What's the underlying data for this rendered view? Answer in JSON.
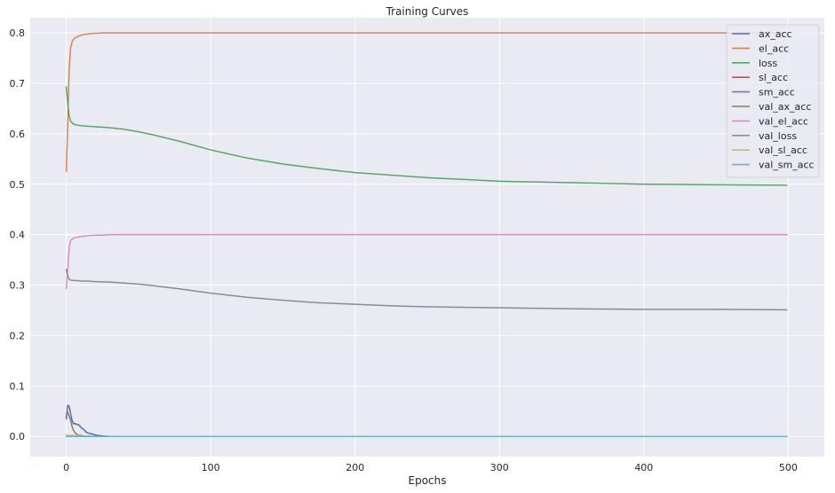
{
  "chart_data": {
    "type": "line",
    "title": "Training Curves",
    "xlabel": "Epochs",
    "ylabel": "",
    "xlim": [
      -25,
      525
    ],
    "ylim": [
      -0.04,
      0.83
    ],
    "xticks": [
      0,
      100,
      200,
      300,
      400,
      500
    ],
    "yticks": [
      0.0,
      0.1,
      0.2,
      0.3,
      0.4,
      0.5,
      0.6,
      0.7,
      0.8
    ],
    "grid": true,
    "background": "#eaeaf2",
    "legend_position": "top-right",
    "series": [
      {
        "name": "ax_acc",
        "color": "#4c72b0",
        "x": [
          0,
          1,
          2,
          3,
          4,
          5,
          6,
          7,
          8,
          9,
          10,
          12,
          14,
          16,
          18,
          20,
          22,
          25,
          30,
          50,
          100,
          200,
          300,
          400,
          499
        ],
        "y": [
          0.035,
          0.062,
          0.06,
          0.045,
          0.032,
          0.025,
          0.026,
          0.024,
          0.024,
          0.022,
          0.018,
          0.014,
          0.008,
          0.006,
          0.005,
          0.003,
          0.002,
          0.001,
          0.0,
          0.0,
          0.0,
          0.0,
          0.0,
          0.0,
          0.0
        ]
      },
      {
        "name": "el_acc",
        "color": "#dd8452",
        "x": [
          0,
          1,
          2,
          3,
          4,
          5,
          6,
          8,
          10,
          12,
          15,
          18,
          20,
          25,
          30,
          50,
          100,
          200,
          300,
          400,
          499
        ],
        "y": [
          0.525,
          0.62,
          0.73,
          0.77,
          0.782,
          0.787,
          0.79,
          0.793,
          0.795,
          0.797,
          0.798,
          0.799,
          0.799,
          0.8,
          0.8,
          0.8,
          0.8,
          0.8,
          0.8,
          0.8,
          0.8
        ]
      },
      {
        "name": "loss",
        "color": "#55a868",
        "x": [
          0,
          1,
          2,
          3,
          5,
          8,
          10,
          15,
          20,
          30,
          40,
          50,
          60,
          80,
          100,
          125,
          150,
          175,
          200,
          225,
          250,
          300,
          350,
          400,
          450,
          499
        ],
        "y": [
          0.693,
          0.66,
          0.635,
          0.625,
          0.619,
          0.617,
          0.616,
          0.615,
          0.614,
          0.612,
          0.609,
          0.604,
          0.598,
          0.584,
          0.568,
          0.552,
          0.54,
          0.531,
          0.523,
          0.518,
          0.513,
          0.506,
          0.503,
          0.5,
          0.499,
          0.498
        ]
      },
      {
        "name": "sl_acc",
        "color": "#c44e52",
        "x": [
          0,
          499
        ],
        "y": [
          0.0,
          0.0
        ]
      },
      {
        "name": "sm_acc",
        "color": "#8172b3",
        "x": [
          0,
          499
        ],
        "y": [
          0.0,
          0.0
        ]
      },
      {
        "name": "val_ax_acc",
        "color": "#937860",
        "x": [
          0,
          1,
          2,
          3,
          4,
          5,
          6,
          7,
          8,
          10,
          12,
          15,
          20,
          30,
          100,
          200,
          300,
          400,
          499
        ],
        "y": [
          0.04,
          0.048,
          0.04,
          0.032,
          0.02,
          0.012,
          0.008,
          0.005,
          0.003,
          0.002,
          0.001,
          0.0,
          0.0,
          0.0,
          0.0,
          0.0,
          0.0,
          0.0,
          0.0
        ]
      },
      {
        "name": "val_el_acc",
        "color": "#da8bc3",
        "x": [
          0,
          1,
          2,
          3,
          4,
          5,
          6,
          8,
          10,
          12,
          15,
          20,
          25,
          30,
          50,
          100,
          200,
          300,
          400,
          499
        ],
        "y": [
          0.293,
          0.33,
          0.375,
          0.388,
          0.391,
          0.393,
          0.394,
          0.395,
          0.396,
          0.397,
          0.398,
          0.399,
          0.399,
          0.4,
          0.4,
          0.4,
          0.4,
          0.4,
          0.4,
          0.4
        ]
      },
      {
        "name": "val_loss",
        "color": "#8c8c8c",
        "x": [
          0,
          1,
          2,
          3,
          5,
          8,
          10,
          15,
          20,
          30,
          40,
          50,
          60,
          80,
          100,
          125,
          150,
          175,
          200,
          225,
          250,
          300,
          350,
          400,
          450,
          499
        ],
        "y": [
          0.331,
          0.318,
          0.312,
          0.31,
          0.309,
          0.309,
          0.308,
          0.308,
          0.307,
          0.306,
          0.304,
          0.302,
          0.299,
          0.292,
          0.284,
          0.276,
          0.27,
          0.265,
          0.262,
          0.259,
          0.257,
          0.255,
          0.253,
          0.252,
          0.252,
          0.251
        ]
      },
      {
        "name": "val_sl_acc",
        "color": "#ccb974",
        "x": [
          0,
          2,
          5,
          10,
          15,
          20,
          25,
          30,
          100,
          499
        ],
        "y": [
          0.003,
          0.002,
          0.002,
          0.001,
          0.001,
          0.0,
          0.0,
          0.0,
          0.0,
          0.0
        ]
      },
      {
        "name": "val_sm_acc",
        "color": "#64b5cd",
        "x": [
          0,
          499
        ],
        "y": [
          0.0,
          0.0
        ]
      }
    ]
  }
}
